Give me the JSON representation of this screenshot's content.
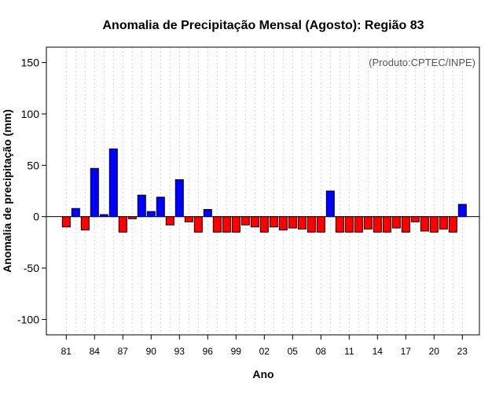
{
  "chart_data": {
    "type": "bar",
    "title": "Anomalia de Precipitação Mensal (Agosto): Região 83",
    "xlabel": "Ano",
    "ylabel": "Anomalia de precipitação (mm)",
    "annotation": "(Produto:CPTEC/INPE)",
    "ylim": [
      -115,
      165
    ],
    "yticks": [
      -100,
      -50,
      0,
      50,
      100,
      150
    ],
    "x_tick_labels": [
      "81",
      "84",
      "87",
      "90",
      "93",
      "96",
      "99",
      "02",
      "05",
      "08",
      "11",
      "14",
      "17",
      "20",
      "23"
    ],
    "categories": [
      1981,
      1982,
      1983,
      1984,
      1985,
      1986,
      1987,
      1988,
      1989,
      1990,
      1991,
      1992,
      1993,
      1994,
      1995,
      1996,
      1997,
      1998,
      1999,
      2000,
      2001,
      2002,
      2003,
      2004,
      2005,
      2006,
      2007,
      2008,
      2009,
      2010,
      2011,
      2012,
      2013,
      2014,
      2015,
      2016,
      2017,
      2018,
      2019,
      2020,
      2021,
      2022,
      2023
    ],
    "values": [
      -10,
      8,
      -13,
      47,
      2,
      66,
      -15,
      -2,
      21,
      5,
      19,
      -8,
      36,
      -5,
      -15,
      7,
      -15,
      -15,
      -15,
      -8,
      -10,
      -15,
      -10,
      -13,
      -11,
      -12,
      -15,
      -15,
      25,
      -15,
      -15,
      -15,
      -12,
      -15,
      -15,
      -11,
      -15,
      -5,
      -14,
      -15,
      -12,
      -15,
      12
    ],
    "colors": {
      "positive": "#0000ff",
      "negative": "#ff0000",
      "edge": "#000000",
      "grid": "#d3d3d3"
    },
    "grid": "vertical-dotted",
    "annotation_placement": "top-right"
  }
}
